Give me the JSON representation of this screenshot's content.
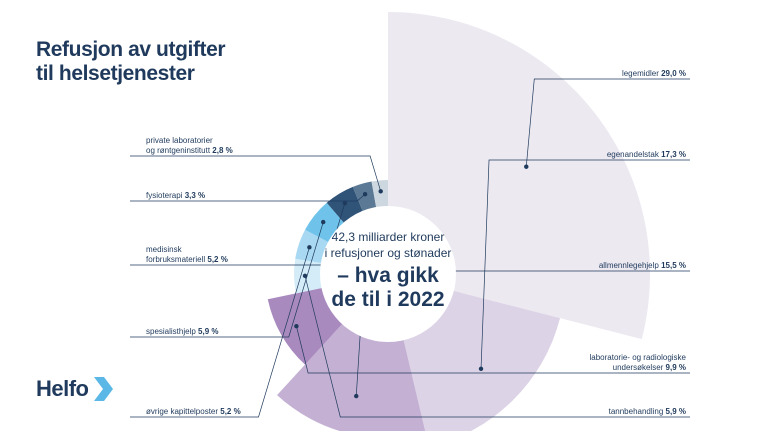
{
  "title": {
    "line1": "Refusjon av utgifter",
    "line2": "til helsetjenester"
  },
  "center": {
    "line1": "42,3  milliarder kroner",
    "line2": "i refusjoner og stønader",
    "line3": "– hva gikk",
    "line4": "de til i 2022"
  },
  "logo": {
    "text": "Helfo",
    "icon": "chevron-arrow-icon"
  },
  "chart_data": {
    "type": "pie",
    "style": "polar-area (variable radius donut), starts at 12 o'clock, clockwise",
    "total_label": "42,3 milliarder kroner",
    "unit": "%",
    "series": [
      {
        "name_lines": [
          "legemidler"
        ],
        "value": 29.0,
        "value_label": "29,0 %",
        "color": "#ece9f1"
      },
      {
        "name_lines": [
          "egenandelstak"
        ],
        "value": 17.3,
        "value_label": "17,3 %",
        "color": "#ddd3e6"
      },
      {
        "name_lines": [
          "allmennlegehjelp"
        ],
        "value": 15.5,
        "value_label": "15,5 %",
        "color": "#c3b0d3"
      },
      {
        "name_lines": [
          "laboratorie- og radiologiske",
          "undersøkelser"
        ],
        "value": 9.9,
        "value_label": "9,9 %",
        "color": "#a98abf"
      },
      {
        "name_lines": [
          "tannbehandling"
        ],
        "value": 5.9,
        "value_label": "5,9 %",
        "color": "#d4ebf8"
      },
      {
        "name_lines": [
          "øvrige kapittelposter"
        ],
        "value": 5.2,
        "value_label": "5,2 %",
        "color": "#a8d8f2"
      },
      {
        "name_lines": [
          "spesialisthjelp"
        ],
        "value": 5.9,
        "value_label": "5,9 %",
        "color": "#6fc3ea"
      },
      {
        "name_lines": [
          "medisinsk",
          "forbruksmateriell"
        ],
        "value": 5.2,
        "value_label": "5,2 %",
        "color": "#2f5478"
      },
      {
        "name_lines": [
          "fysioterapi"
        ],
        "value": 3.3,
        "value_label": "3,3 %",
        "color": "#5b7994"
      },
      {
        "name_lines": [
          "private laboratorier",
          "og røntgeninstitutt"
        ],
        "value": 2.8,
        "value_label": "2,8 %",
        "color": "#cdd7df"
      }
    ]
  }
}
